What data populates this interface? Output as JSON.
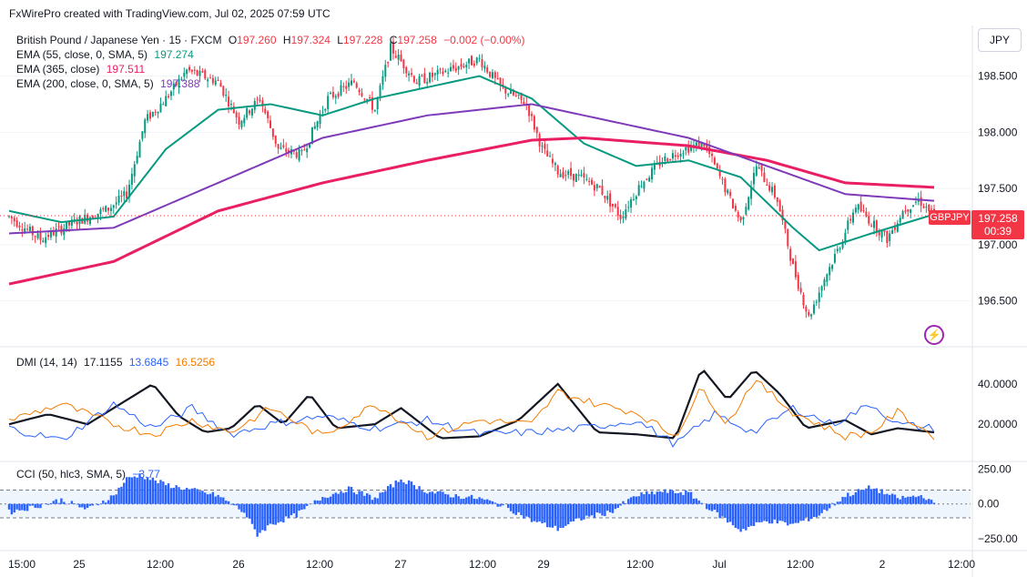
{
  "header": {
    "attribution": "FxWirePro created with TradingView.com, Jul 02, 2025 07:59 UTC"
  },
  "currency": "JPY",
  "symbol_badge": "GBPJPY",
  "price_badge": {
    "price": "197.258",
    "countdown": "00:39"
  },
  "main_legend": {
    "title": "British Pound / Japanese Yen · 15 · FXCM",
    "o_label": "O",
    "o_value": "197.260",
    "h_label": "H",
    "h_value": "197.324",
    "l_label": "L",
    "l_value": "197.228",
    "c_label": "C",
    "c_value": "197.258",
    "change": "−0.002 (−0.00%)",
    "ema55_label": "EMA (55, close, 0, SMA, 5)",
    "ema55_value": "197.274",
    "ema365_label": "EMA (365, close)",
    "ema365_value": "197.511",
    "ema200_label": "EMA (200, close, 0, SMA, 5)",
    "ema200_value": "197.388"
  },
  "dmi_legend": {
    "label": "DMI (14, 14)",
    "adx": "17.1155",
    "plus_di": "13.6845",
    "minus_di": "16.5256"
  },
  "cci_legend": {
    "label": "CCI (50, hlc3, SMA, 5)",
    "value": "−3.77"
  },
  "colors": {
    "up": "#089981",
    "down": "#f23645",
    "ema55": "#089981",
    "ema365": "#e91e63",
    "ema200": "#7e3ab8",
    "adx": "#131722",
    "plus_di": "#2962ff",
    "minus_di": "#f57c00",
    "cci": "#2962ff"
  },
  "chart_data": [
    {
      "type": "candlestick",
      "title": "British Pound / Japanese Yen · 15 · FXCM",
      "y_axis": {
        "ticks": [
          "198.500",
          "198.000",
          "197.500",
          "197.000",
          "196.500"
        ],
        "ylim": [
          196.1,
          198.95
        ]
      },
      "x_axis": {
        "ticks": [
          "15:00",
          "25",
          "12:00",
          "26",
          "12:00",
          "27",
          "12:00",
          "29",
          "12:00",
          "Jul",
          "12:00",
          "2",
          "12:00"
        ]
      },
      "price_path": [
        [
          0,
          197.25
        ],
        [
          12,
          197.05
        ],
        [
          25,
          197.2
        ],
        [
          38,
          197.32
        ],
        [
          45,
          197.45
        ],
        [
          52,
          198.1
        ],
        [
          60,
          198.3
        ],
        [
          68,
          198.55
        ],
        [
          80,
          198.45
        ],
        [
          88,
          198.1
        ],
        [
          96,
          198.3
        ],
        [
          103,
          197.85
        ],
        [
          112,
          197.8
        ],
        [
          122,
          198.3
        ],
        [
          132,
          198.45
        ],
        [
          140,
          198.2
        ],
        [
          146,
          198.75
        ],
        [
          156,
          198.45
        ],
        [
          168,
          198.55
        ],
        [
          180,
          198.65
        ],
        [
          188,
          198.4
        ],
        [
          198,
          198.25
        ],
        [
          204,
          197.85
        ],
        [
          210,
          197.65
        ],
        [
          218,
          197.6
        ],
        [
          226,
          197.5
        ],
        [
          234,
          197.25
        ],
        [
          242,
          197.55
        ],
        [
          250,
          197.75
        ],
        [
          258,
          197.85
        ],
        [
          266,
          197.9
        ],
        [
          272,
          197.6
        ],
        [
          280,
          197.2
        ],
        [
          286,
          197.7
        ],
        [
          294,
          197.4
        ],
        [
          300,
          196.8
        ],
        [
          306,
          196.35
        ],
        [
          312,
          196.7
        ],
        [
          318,
          197.0
        ],
        [
          324,
          197.35
        ],
        [
          330,
          197.2
        ],
        [
          336,
          197.05
        ],
        [
          342,
          197.3
        ],
        [
          348,
          197.4
        ],
        [
          354,
          197.26
        ]
      ],
      "series": [
        {
          "name": "EMA (55, close, 0, SMA, 5)",
          "values": [
            [
              0,
              197.3
            ],
            [
              20,
              197.2
            ],
            [
              40,
              197.25
            ],
            [
              60,
              197.85
            ],
            [
              80,
              198.2
            ],
            [
              100,
              198.25
            ],
            [
              120,
              198.15
            ],
            [
              140,
              198.3
            ],
            [
              160,
              198.4
            ],
            [
              180,
              198.5
            ],
            [
              200,
              198.3
            ],
            [
              220,
              197.9
            ],
            [
              240,
              197.7
            ],
            [
              260,
              197.75
            ],
            [
              280,
              197.6
            ],
            [
              300,
              197.15
            ],
            [
              310,
              196.95
            ],
            [
              330,
              197.1
            ],
            [
              354,
              197.27
            ]
          ]
        },
        {
          "name": "EMA (365, close)",
          "values": [
            [
              0,
              196.65
            ],
            [
              40,
              196.85
            ],
            [
              80,
              197.3
            ],
            [
              120,
              197.55
            ],
            [
              160,
              197.75
            ],
            [
              200,
              197.93
            ],
            [
              220,
              197.95
            ],
            [
              260,
              197.88
            ],
            [
              290,
              197.75
            ],
            [
              320,
              197.55
            ],
            [
              354,
              197.51
            ]
          ]
        },
        {
          "name": "EMA (200, close, 0, SMA, 5)",
          "values": [
            [
              0,
              197.1
            ],
            [
              40,
              197.15
            ],
            [
              80,
              197.55
            ],
            [
              120,
              197.95
            ],
            [
              160,
              198.15
            ],
            [
              200,
              198.25
            ],
            [
              220,
              198.15
            ],
            [
              260,
              197.95
            ],
            [
              290,
              197.7
            ],
            [
              320,
              197.45
            ],
            [
              354,
              197.39
            ]
          ]
        }
      ]
    },
    {
      "type": "line",
      "title": "DMI (14, 14)",
      "y_axis": {
        "ticks": [
          "40.0000",
          "20.0000"
        ],
        "ylim": [
          2,
          58
        ]
      },
      "series": [
        {
          "name": "ADX",
          "values": [
            [
              0,
              20
            ],
            [
              15,
              25
            ],
            [
              30,
              20
            ],
            [
              45,
              32
            ],
            [
              55,
              40
            ],
            [
              65,
              24
            ],
            [
              75,
              16
            ],
            [
              85,
              18
            ],
            [
              95,
              30
            ],
            [
              105,
              20
            ],
            [
              115,
              35
            ],
            [
              125,
              18
            ],
            [
              140,
              20
            ],
            [
              150,
              28
            ],
            [
              165,
              13
            ],
            [
              180,
              14
            ],
            [
              195,
              22
            ],
            [
              210,
              40
            ],
            [
              225,
              16
            ],
            [
              240,
              15
            ],
            [
              255,
              13
            ],
            [
              265,
              48
            ],
            [
              275,
              32
            ],
            [
              285,
              47
            ],
            [
              295,
              35
            ],
            [
              305,
              18
            ],
            [
              320,
              22
            ],
            [
              330,
              15
            ],
            [
              340,
              18
            ],
            [
              354,
              16
            ]
          ]
        },
        {
          "name": "+DI",
          "values": [
            [
              0,
              18
            ],
            [
              20,
              12
            ],
            [
              40,
              30
            ],
            [
              55,
              18
            ],
            [
              70,
              28
            ],
            [
              85,
              15
            ],
            [
              100,
              20
            ],
            [
              120,
              24
            ],
            [
              140,
              18
            ],
            [
              160,
              22
            ],
            [
              180,
              15
            ],
            [
              200,
              16
            ],
            [
              220,
              18
            ],
            [
              240,
              22
            ],
            [
              255,
              10
            ],
            [
              270,
              25
            ],
            [
              285,
              16
            ],
            [
              300,
              28
            ],
            [
              315,
              20
            ],
            [
              330,
              30
            ],
            [
              340,
              20
            ],
            [
              354,
              18
            ]
          ]
        },
        {
          "name": "−DI",
          "values": [
            [
              0,
              22
            ],
            [
              20,
              30
            ],
            [
              40,
              20
            ],
            [
              55,
              15
            ],
            [
              70,
              22
            ],
            [
              85,
              16
            ],
            [
              100,
              28
            ],
            [
              120,
              14
            ],
            [
              140,
              30
            ],
            [
              160,
              14
            ],
            [
              180,
              22
            ],
            [
              200,
              20
            ],
            [
              210,
              36
            ],
            [
              225,
              30
            ],
            [
              240,
              26
            ],
            [
              255,
              14
            ],
            [
              265,
              38
            ],
            [
              275,
              20
            ],
            [
              285,
              42
            ],
            [
              300,
              26
            ],
            [
              320,
              14
            ],
            [
              330,
              16
            ],
            [
              340,
              26
            ],
            [
              354,
              14
            ]
          ]
        }
      ]
    },
    {
      "type": "bar",
      "title": "CCI (50, hlc3, SMA, 5)",
      "y_axis": {
        "ticks": [
          "250.00",
          "0.00",
          "−250.00"
        ],
        "ylim": [
          -330,
          300
        ]
      },
      "band": [
        100,
        -100
      ],
      "series": [
        {
          "name": "CCI",
          "values": [
            [
              0,
              -60
            ],
            [
              10,
              -20
            ],
            [
              20,
              30
            ],
            [
              30,
              -40
            ],
            [
              40,
              60
            ],
            [
              45,
              180
            ],
            [
              50,
              210
            ],
            [
              60,
              140
            ],
            [
              70,
              100
            ],
            [
              80,
              60
            ],
            [
              90,
              -60
            ],
            [
              95,
              -220
            ],
            [
              100,
              -150
            ],
            [
              110,
              -80
            ],
            [
              120,
              50
            ],
            [
              130,
              110
            ],
            [
              140,
              40
            ],
            [
              150,
              180
            ],
            [
              160,
              90
            ],
            [
              170,
              60
            ],
            [
              180,
              40
            ],
            [
              190,
              -20
            ],
            [
              200,
              -120
            ],
            [
              210,
              -180
            ],
            [
              220,
              -100
            ],
            [
              230,
              -60
            ],
            [
              240,
              60
            ],
            [
              250,
              90
            ],
            [
              260,
              80
            ],
            [
              270,
              -60
            ],
            [
              280,
              -190
            ],
            [
              290,
              -120
            ],
            [
              300,
              -150
            ],
            [
              310,
              -80
            ],
            [
              320,
              60
            ],
            [
              330,
              120
            ],
            [
              340,
              40
            ],
            [
              350,
              60
            ],
            [
              354,
              -4
            ]
          ]
        }
      ]
    }
  ]
}
